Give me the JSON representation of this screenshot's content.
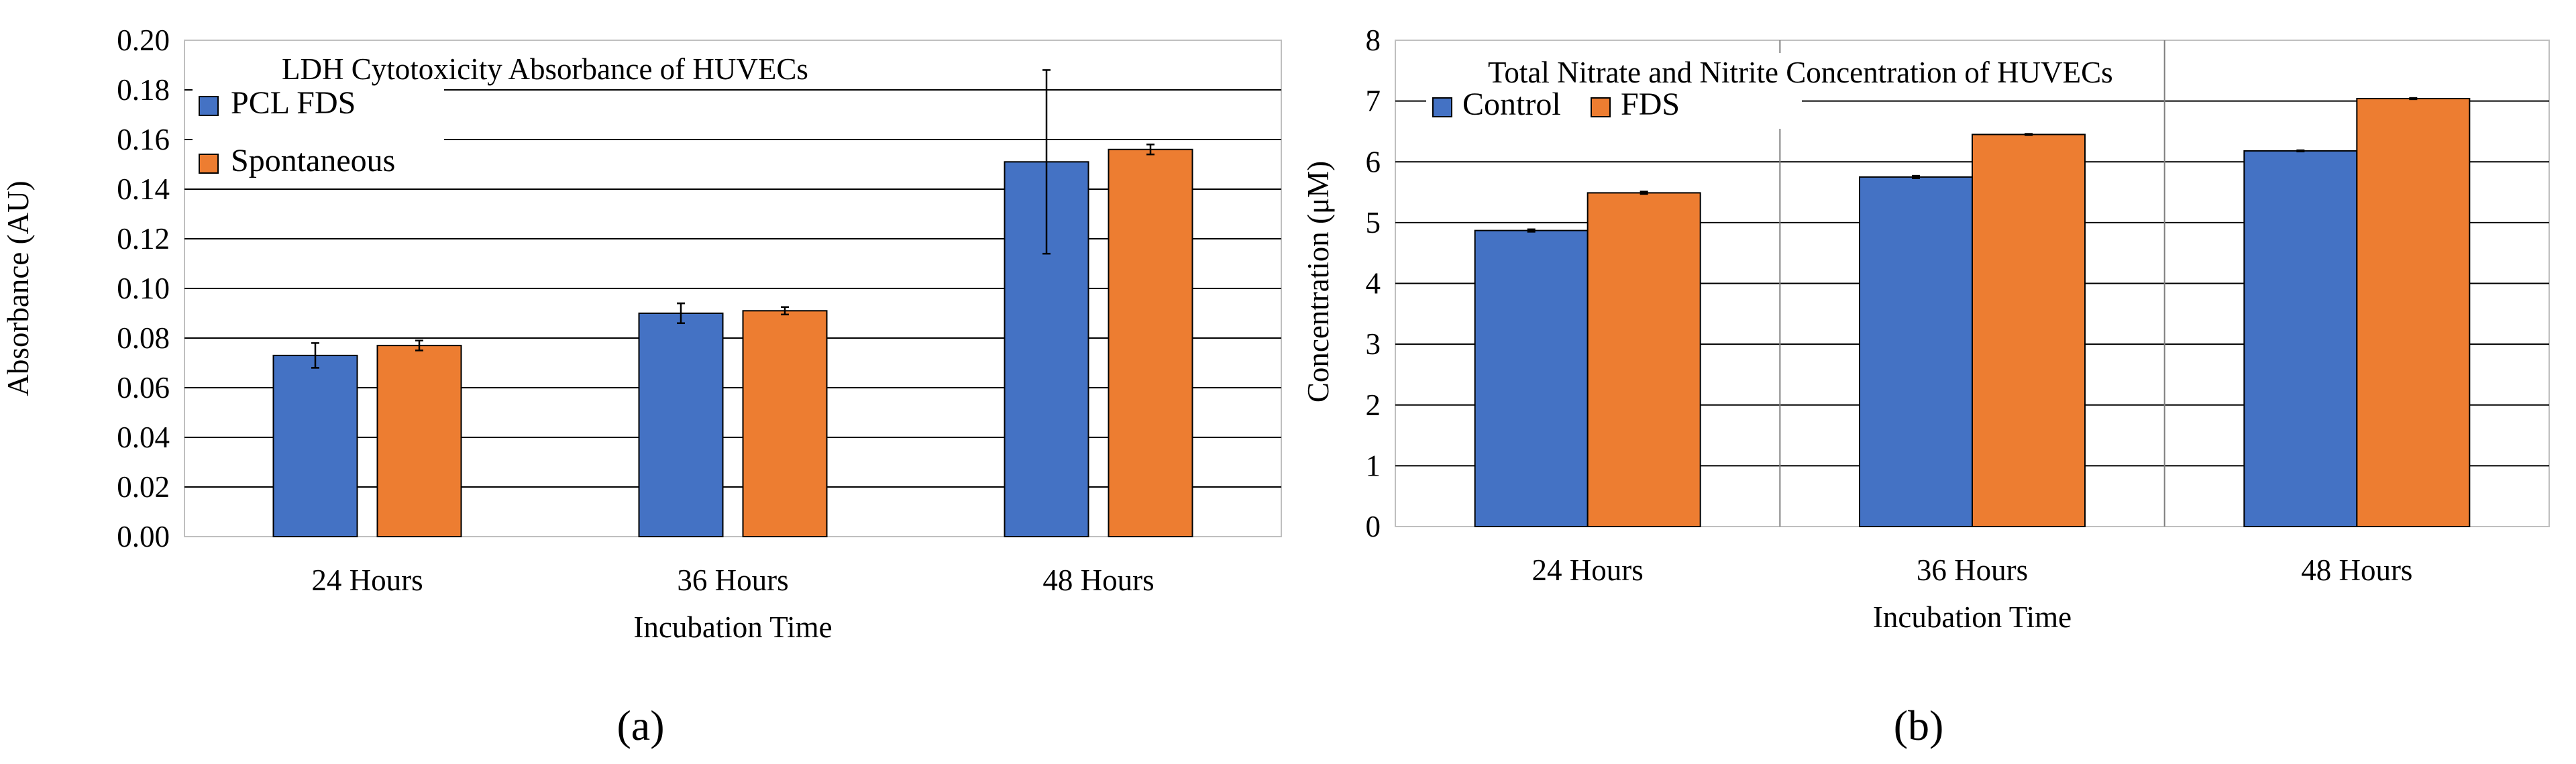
{
  "chart_data": [
    {
      "type": "bar",
      "title": "LDH Cytotoxicity Absorbance of HUVECs",
      "xlabel": "Incubation Time",
      "ylabel": "Absorbance (AU)",
      "categories": [
        "24 Hours",
        "36 Hours",
        "48 Hours"
      ],
      "y_ticks": [
        "0.00",
        "0.02",
        "0.04",
        "0.06",
        "0.08",
        "0.10",
        "0.12",
        "0.14",
        "0.16",
        "0.18",
        "0.20"
      ],
      "ylim": [
        0,
        0.2
      ],
      "grid": "horizontal",
      "legend": "top-left",
      "series": [
        {
          "name": "PCL FDS",
          "color": "#4472C4",
          "values": [
            0.073,
            0.09,
            0.151
          ],
          "errors": [
            0.005,
            0.004,
            0.037
          ]
        },
        {
          "name": "Spontaneous",
          "color": "#ED7D31",
          "values": [
            0.077,
            0.091,
            0.156
          ],
          "errors": [
            0.002,
            0.0015,
            0.002
          ]
        }
      ],
      "caption": "(a)"
    },
    {
      "type": "bar",
      "title": "Total Nitrate and Nitrite Concentration of HUVECs",
      "xlabel": "Incubation Time",
      "ylabel": "Concentration (μM)",
      "categories": [
        "24 Hours",
        "36 Hours",
        "48 Hours"
      ],
      "y_ticks": [
        "0",
        "1",
        "2",
        "3",
        "4",
        "5",
        "6",
        "7",
        "8"
      ],
      "ylim": [
        0,
        8
      ],
      "grid": "both",
      "legend": "top-left",
      "series": [
        {
          "name": "Control",
          "color": "#4472C4",
          "values": [
            4.87,
            5.75,
            6.18
          ],
          "errors": [
            0.02,
            0.02,
            0.01
          ]
        },
        {
          "name": "FDS",
          "color": "#ED7D31",
          "values": [
            5.49,
            6.45,
            7.04
          ],
          "errors": [
            0.02,
            0.01,
            0.01
          ]
        }
      ],
      "caption": "(b)"
    }
  ]
}
